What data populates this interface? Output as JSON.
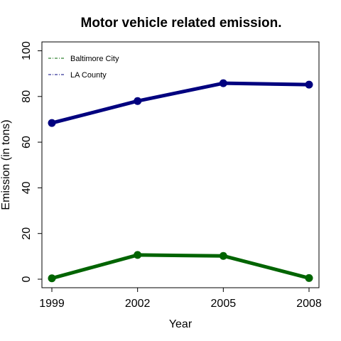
{
  "chart_data": {
    "type": "line",
    "title": "Motor vehicle related emission.",
    "xlabel": "Year",
    "ylabel": "Emission (in tons)",
    "x": [
      1999,
      2002,
      2005,
      2008
    ],
    "xticks": [
      "1999",
      "2002",
      "2005",
      "2008"
    ],
    "yticks": [
      "0",
      "20",
      "40",
      "60",
      "80",
      "100"
    ],
    "ylim": [
      0,
      100
    ],
    "grid": false,
    "legend": "top-left",
    "series": [
      {
        "name": "Baltimore City",
        "color": "#006400",
        "values": [
          0.4,
          10.6,
          10.2,
          0.5
        ]
      },
      {
        "name": "LA County",
        "color": "#00007f",
        "values": [
          68.4,
          78.0,
          85.8,
          85.2
        ]
      }
    ]
  }
}
